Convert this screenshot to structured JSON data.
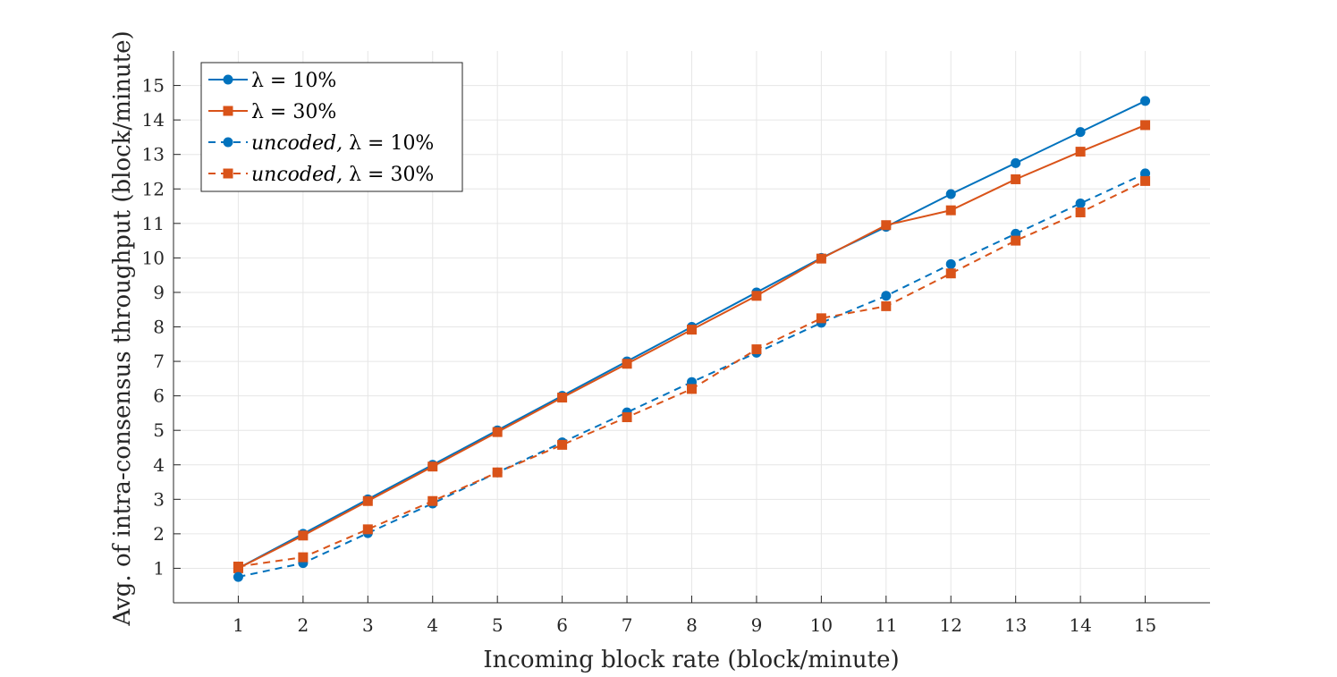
{
  "chart_data": {
    "type": "line",
    "title": "",
    "xlabel": "Incoming block rate (block/minute)",
    "ylabel": "Avg. of intra-consensus throughput (block/minute)",
    "x": [
      1,
      2,
      3,
      4,
      5,
      6,
      7,
      8,
      9,
      10,
      11,
      12,
      13,
      14,
      15
    ],
    "xlim": [
      0,
      16
    ],
    "ylim": [
      0,
      16
    ],
    "xticks": [
      1,
      2,
      3,
      4,
      5,
      6,
      7,
      8,
      9,
      10,
      11,
      12,
      13,
      14,
      15
    ],
    "yticks": [
      1,
      2,
      3,
      4,
      5,
      6,
      7,
      8,
      9,
      10,
      11,
      12,
      13,
      14,
      15
    ],
    "grid": true,
    "legend_position": "top-left",
    "series": [
      {
        "name": "λ = 10%",
        "legend_prefix": "",
        "legend_math": "λ = 10%",
        "color": "#0072BD",
        "marker": "circle",
        "dashed": false,
        "values": [
          1.0,
          2.0,
          3.0,
          4.0,
          5.0,
          6.0,
          7.0,
          8.0,
          9.0,
          10.0,
          10.9,
          11.85,
          12.75,
          13.65,
          14.55
        ]
      },
      {
        "name": "λ = 30%",
        "legend_prefix": "",
        "legend_math": "λ = 30%",
        "color": "#D95319",
        "marker": "square",
        "dashed": false,
        "values": [
          1.0,
          1.95,
          2.95,
          3.95,
          4.95,
          5.95,
          6.93,
          7.92,
          8.9,
          9.98,
          10.95,
          11.38,
          12.28,
          13.08,
          13.85
        ]
      },
      {
        "name": "uncoded, λ = 10%",
        "legend_prefix": "uncoded,",
        "legend_math": "λ = 10%",
        "color": "#0072BD",
        "marker": "circle",
        "dashed": true,
        "values": [
          0.75,
          1.15,
          2.02,
          2.88,
          3.78,
          4.65,
          5.52,
          6.4,
          7.25,
          8.12,
          8.9,
          9.82,
          10.7,
          11.58,
          12.45
        ]
      },
      {
        "name": "uncoded, λ = 30%",
        "legend_prefix": "uncoded,",
        "legend_math": "λ = 30%",
        "color": "#D95319",
        "marker": "square",
        "dashed": true,
        "values": [
          1.05,
          1.32,
          2.13,
          2.95,
          3.78,
          4.58,
          5.38,
          6.2,
          7.35,
          8.25,
          8.6,
          9.55,
          10.5,
          11.32,
          12.23
        ]
      }
    ]
  }
}
